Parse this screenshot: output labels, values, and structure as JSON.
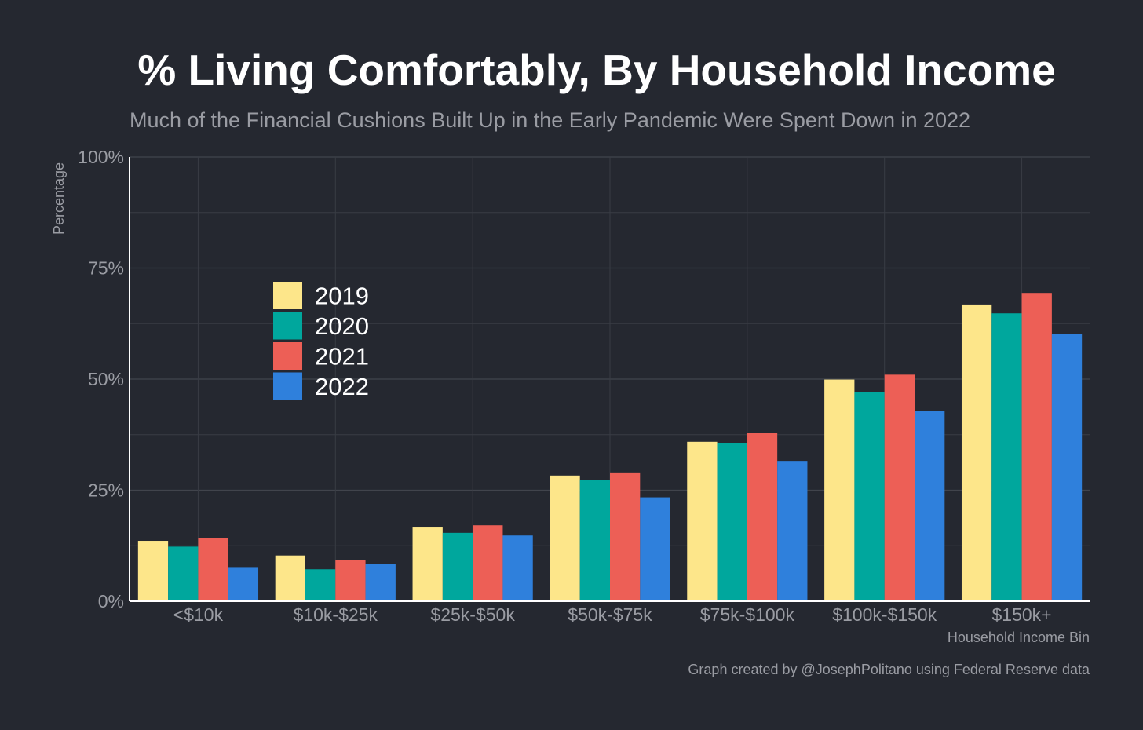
{
  "chart_data": {
    "type": "bar",
    "title": "% Living Comfortably, By Household Income",
    "subtitle": "Much of the Financial Cushions Built Up in the Early Pandemic Were Spent Down in 2022",
    "xlabel": "Household Income Bin",
    "ylabel": "Percentage",
    "caption": "Graph created by @JosephPolitano using Federal Reserve data",
    "ylim": [
      0,
      100
    ],
    "yticks": [
      0,
      25,
      50,
      75,
      100
    ],
    "ytick_labels": [
      "0%",
      "25%",
      "50%",
      "75%",
      "100%"
    ],
    "grid": true,
    "legend_position": "upper-left inside plot",
    "categories": [
      "<$10k",
      "$10k-$25k",
      "$25k-$50k",
      "$50k-$75k",
      "$75k-$100k",
      "$100k-$150k",
      "$150k+"
    ],
    "series": [
      {
        "name": "2019",
        "color": "#fde68a",
        "values": [
          13.6,
          10.3,
          16.6,
          28.3,
          35.9,
          49.9,
          66.8
        ]
      },
      {
        "name": "2020",
        "color": "#00a79d",
        "values": [
          12.3,
          7.2,
          15.4,
          27.3,
          35.6,
          47.0,
          64.8
        ]
      },
      {
        "name": "2021",
        "color": "#ed5f56",
        "values": [
          14.3,
          9.2,
          17.1,
          29.0,
          37.9,
          51.0,
          69.4
        ]
      },
      {
        "name": "2022",
        "color": "#2f80dc",
        "values": [
          7.7,
          8.4,
          14.8,
          23.4,
          31.6,
          42.9,
          60.1
        ]
      }
    ]
  }
}
